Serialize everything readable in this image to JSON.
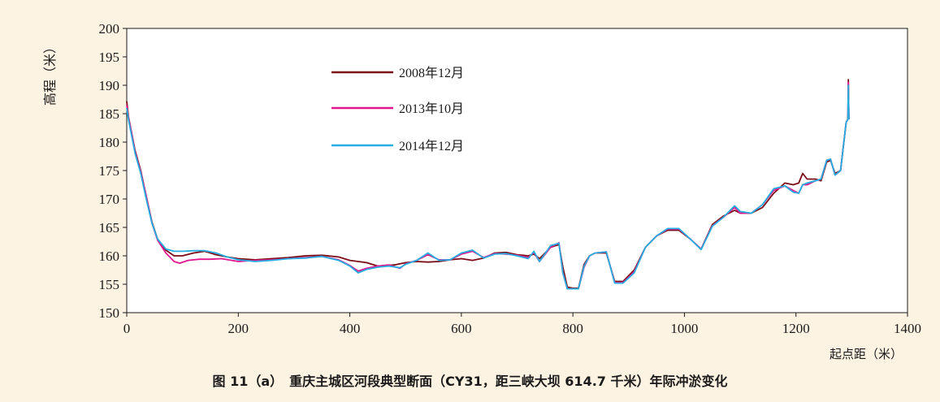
{
  "chart_data": {
    "type": "line",
    "title": "",
    "caption": "图 11（a）　重庆主城区河段典型断面（CY31，距三峡大坝 614.7 千米）年际冲淤变化",
    "xlabel": "起点距（米）",
    "ylabel": "高程（米）",
    "xlim": [
      0,
      1400
    ],
    "ylim": [
      150,
      200
    ],
    "xticks": [
      "0",
      "200",
      "400",
      "600",
      "800",
      "1000",
      "1200",
      "1400"
    ],
    "yticks": [
      "150",
      "155",
      "160",
      "165",
      "170",
      "175",
      "180",
      "185",
      "190",
      "195",
      "200"
    ],
    "grid": false,
    "legend_position": "top-left",
    "series": [
      {
        "name": "2008年12月",
        "color": "#7b0c17",
        "x": [
          0,
          3,
          8,
          15,
          25,
          35,
          45,
          55,
          70,
          85,
          100,
          120,
          140,
          160,
          180,
          200,
          230,
          260,
          290,
          320,
          350,
          380,
          400,
          430,
          450,
          480,
          500,
          520,
          540,
          560,
          580,
          600,
          620,
          640,
          660,
          680,
          700,
          720,
          730,
          740,
          760,
          775,
          782,
          790,
          800,
          810,
          820,
          830,
          840,
          860,
          875,
          890,
          910,
          930,
          950,
          970,
          990,
          1010,
          1030,
          1050,
          1070,
          1090,
          1100,
          1120,
          1140,
          1160,
          1180,
          1195,
          1205,
          1212,
          1220,
          1235,
          1245,
          1255,
          1262,
          1270,
          1280,
          1290,
          1293,
          1294,
          1295
        ],
        "y": [
          187.2,
          184.5,
          182,
          178.5,
          175,
          170.5,
          166,
          163,
          161,
          160,
          160,
          160.5,
          160.8,
          160.2,
          159.8,
          159.5,
          159.3,
          159.5,
          159.7,
          160,
          160.1,
          159.8,
          159.2,
          158.8,
          158.2,
          158.4,
          158.8,
          159,
          158.9,
          159,
          159.3,
          159.5,
          159.2,
          159.6,
          160.5,
          160.6,
          160.2,
          160,
          160.3,
          159.5,
          161.5,
          162,
          158,
          154.5,
          154.3,
          154.3,
          158.5,
          160,
          160.5,
          160.5,
          155.5,
          155.5,
          157.5,
          161.5,
          163.5,
          164.5,
          164.5,
          163,
          161.2,
          165.5,
          167,
          168,
          167.5,
          167.5,
          168.5,
          171,
          172.8,
          172.5,
          172.8,
          174.5,
          173.5,
          173.5,
          173.2,
          176.5,
          176.8,
          174.5,
          175,
          183.5,
          184,
          191,
          184
        ]
      },
      {
        "name": "2013年10月",
        "color": "#e0168e",
        "x": [
          0,
          3,
          8,
          15,
          25,
          35,
          45,
          55,
          70,
          85,
          95,
          110,
          130,
          150,
          170,
          200,
          230,
          260,
          290,
          320,
          350,
          380,
          400,
          415,
          430,
          450,
          470,
          490,
          500,
          520,
          540,
          560,
          580,
          600,
          620,
          640,
          660,
          680,
          700,
          720,
          730,
          740,
          760,
          775,
          782,
          790,
          800,
          810,
          820,
          830,
          840,
          860,
          875,
          890,
          910,
          930,
          950,
          970,
          990,
          1010,
          1030,
          1050,
          1070,
          1090,
          1100,
          1120,
          1140,
          1160,
          1180,
          1195,
          1205,
          1212,
          1220,
          1235,
          1245,
          1255,
          1262,
          1270,
          1280,
          1290,
          1293,
          1294,
          1295
        ],
        "y": [
          186.5,
          184.3,
          182,
          178.2,
          174.8,
          170.5,
          165.8,
          162.8,
          160.5,
          159,
          158.7,
          159.2,
          159.4,
          159.4,
          159.5,
          159,
          159.2,
          159.3,
          159.5,
          159.7,
          159.9,
          159.3,
          158.3,
          157.3,
          157.8,
          158.2,
          158.4,
          157.8,
          158.6,
          159.2,
          160.2,
          159.3,
          159.3,
          160.3,
          160.8,
          159.7,
          160.4,
          160.3,
          160.1,
          159.7,
          160.6,
          159,
          161.5,
          162.3,
          157,
          154.2,
          154.2,
          154.2,
          158,
          160,
          160.5,
          160.7,
          155.3,
          155.3,
          157.2,
          161.5,
          163.5,
          164.7,
          164.7,
          163,
          161.2,
          165.3,
          166.8,
          168.5,
          167.5,
          167.5,
          169,
          171.5,
          172.3,
          171.5,
          171,
          172.5,
          172.5,
          173.2,
          173.5,
          176.8,
          177,
          174.2,
          175,
          183.5,
          184,
          190.5,
          184
        ]
      },
      {
        "name": "2014年12月",
        "color": "#25aee2",
        "x": [
          0,
          3,
          8,
          15,
          25,
          35,
          45,
          55,
          70,
          85,
          100,
          120,
          140,
          160,
          180,
          200,
          230,
          260,
          290,
          320,
          350,
          380,
          400,
          415,
          430,
          450,
          470,
          490,
          500,
          520,
          540,
          560,
          580,
          600,
          620,
          640,
          660,
          680,
          700,
          720,
          730,
          740,
          760,
          775,
          782,
          790,
          800,
          810,
          820,
          830,
          840,
          860,
          875,
          890,
          910,
          930,
          950,
          970,
          990,
          1010,
          1030,
          1050,
          1070,
          1090,
          1100,
          1120,
          1140,
          1160,
          1180,
          1195,
          1205,
          1212,
          1220,
          1235,
          1245,
          1255,
          1262,
          1270,
          1280,
          1290,
          1293,
          1294,
          1295
        ],
        "y": [
          186,
          184,
          181.5,
          178,
          174.5,
          170,
          165.8,
          163,
          161.2,
          160.8,
          160.8,
          160.9,
          160.9,
          160.5,
          159.8,
          159.3,
          159,
          159.2,
          159.5,
          159.6,
          159.9,
          159.2,
          158.2,
          157,
          157.6,
          158,
          158.2,
          157.9,
          158.5,
          159.2,
          160.5,
          159.2,
          159.3,
          160.5,
          161,
          159.6,
          160.3,
          160.4,
          160,
          159.5,
          160.8,
          159,
          161.8,
          162.2,
          157,
          154.2,
          154.2,
          154.2,
          158.2,
          160,
          160.5,
          160.7,
          155.2,
          155.2,
          157,
          161.5,
          163.5,
          164.8,
          164.8,
          163,
          161.1,
          165.2,
          166.8,
          168.8,
          167.8,
          167.5,
          169,
          171.8,
          172.3,
          171.2,
          171,
          172.5,
          172.8,
          173.2,
          173.5,
          176.8,
          177,
          174.2,
          175,
          183.5,
          184,
          190,
          184
        ]
      }
    ]
  }
}
